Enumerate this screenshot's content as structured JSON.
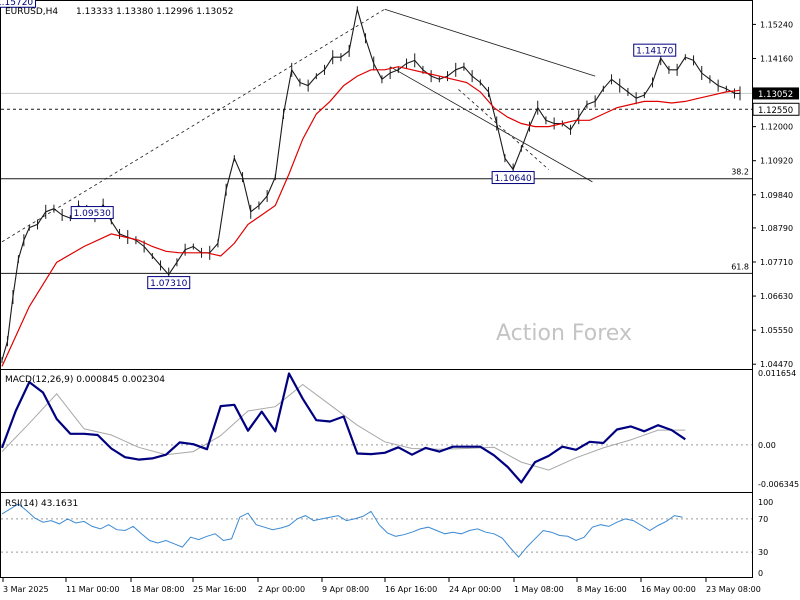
{
  "header": {
    "symbol_timeframe": "EURUSD,H4",
    "ohlc": "1.13333 1.13380 1.12996 1.13052"
  },
  "watermark": "Action Forex",
  "colors": {
    "price": "#1a1a1a",
    "ma": "#e00000",
    "macd": "#000080",
    "signal": "#a8a8a8",
    "rsi": "#3c8ad2",
    "label_border": "#000080",
    "current_price_bg": "#000000"
  },
  "chart_data": [
    {
      "type": "line",
      "title": "EURUSD,H4",
      "ylim": [
        1.0435,
        1.1595
      ],
      "yticks": [
        "1.15240",
        "1.14160",
        "1.13080",
        "1.12000",
        "1.10920",
        "1.09840",
        "1.08790",
        "1.07710",
        "1.06630",
        "1.05550",
        "1.04470"
      ],
      "xticks": [
        "3 Mar 2025",
        "11 Mar 00:00",
        "18 Mar 08:00",
        "25 Mar 16:00",
        "2 Apr 00:00",
        "9 Apr 08:00",
        "16 Apr 16:00",
        "24 Apr 00:00",
        "1 May 08:00",
        "8 May 16:00",
        "16 May 00:00",
        "23 May 08:00"
      ],
      "series": [
        {
          "x": [
            0,
            2,
            4,
            6,
            8,
            10,
            13,
            16,
            19,
            22,
            25,
            28,
            31,
            34,
            37,
            40,
            43,
            46,
            49,
            52,
            55,
            58,
            61,
            64,
            67,
            70,
            73,
            76,
            79,
            82,
            85,
            88,
            91,
            94,
            97,
            100,
            103,
            106,
            109,
            112,
            115,
            118,
            121,
            124,
            127,
            130,
            133,
            136,
            139,
            142,
            145,
            148,
            151,
            154,
            157,
            160,
            163,
            166,
            169,
            172,
            175,
            178,
            181,
            184,
            187,
            190,
            193,
            196,
            199,
            202,
            205,
            208,
            211,
            214,
            217,
            220,
            223,
            226,
            229,
            232,
            235,
            238,
            241,
            244,
            247,
            250,
            253,
            256,
            259,
            262,
            265,
            268,
            270
          ],
          "values": [
            1.046,
            1.052,
            1.066,
            1.078,
            1.084,
            1.088,
            1.089,
            1.093,
            1.094,
            1.092,
            1.091,
            1.095,
            1.093,
            1.091,
            1.0953,
            1.09,
            1.086,
            1.085,
            1.084,
            1.082,
            1.079,
            1.076,
            1.0731,
            1.077,
            1.081,
            1.082,
            1.08,
            1.08,
            1.083,
            1.1,
            1.11,
            1.104,
            1.093,
            1.095,
            1.098,
            1.104,
            1.124,
            1.138,
            1.134,
            1.133,
            1.136,
            1.138,
            1.142,
            1.142,
            1.144,
            1.1572,
            1.148,
            1.14,
            1.135,
            1.137,
            1.138,
            1.14,
            1.141,
            1.138,
            1.136,
            1.135,
            1.136,
            1.138,
            1.139,
            1.136,
            1.134,
            1.131,
            1.121,
            1.11,
            1.1064,
            1.113,
            1.12,
            1.126,
            1.122,
            1.121,
            1.121,
            1.119,
            1.123,
            1.127,
            1.128,
            1.132,
            1.135,
            1.133,
            1.131,
            1.129,
            1.13,
            1.134,
            1.1417,
            1.138,
            1.138,
            1.142,
            1.141,
            1.137,
            1.135,
            1.133,
            1.132,
            1.13052,
            1.13052
          ]
        },
        {
          "name": "MA",
          "x": [
            0,
            10,
            20,
            30,
            40,
            50,
            55,
            60,
            65,
            70,
            75,
            80,
            85,
            90,
            95,
            100,
            105,
            110,
            115,
            120,
            125,
            130,
            135,
            140,
            145,
            150,
            155,
            160,
            165,
            170,
            175,
            180,
            185,
            190,
            195,
            200,
            205,
            210,
            215,
            220,
            225,
            230,
            235,
            240,
            245,
            250,
            255,
            260,
            265,
            270
          ],
          "values": [
            1.044,
            1.063,
            1.077,
            1.082,
            1.086,
            1.084,
            1.082,
            1.0805,
            1.08,
            1.08,
            1.08,
            1.079,
            1.083,
            1.089,
            1.092,
            1.095,
            1.105,
            1.116,
            1.124,
            1.128,
            1.133,
            1.136,
            1.138,
            1.138,
            1.139,
            1.138,
            1.137,
            1.136,
            1.135,
            1.134,
            1.131,
            1.126,
            1.123,
            1.121,
            1.12,
            1.12,
            1.121,
            1.122,
            1.122,
            1.124,
            1.126,
            1.127,
            1.128,
            1.128,
            1.1275,
            1.128,
            1.129,
            1.13,
            1.131,
            1.1315
          ]
        }
      ],
      "horizontal_levels": [
        {
          "value": 1.13052,
          "style": "solid",
          "color": "#c8c8c8"
        },
        {
          "value": 1.1255,
          "style": "dashed",
          "color": "#1a1a1a"
        },
        {
          "value": 1.1035,
          "style": "solid",
          "color": "#1a1a1a",
          "label": "38.2"
        },
        {
          "value": 1.0735,
          "style": "solid",
          "color": "#1a1a1a",
          "label": "61.8"
        }
      ],
      "price_labels": [
        {
          "x": 13,
          "value": 1.1572,
          "label": "1.15720"
        },
        {
          "x": 33,
          "value": 1.0953,
          "label": "1.09530"
        },
        {
          "x": 61,
          "value": 1.0731,
          "label": "1.07310"
        },
        {
          "x": 187,
          "value": 1.1064,
          "label": "1.10640"
        },
        {
          "x": 241,
          "value": 1.1417,
          "label": "1.14170"
        }
      ],
      "axis_tags": [
        {
          "value": 1.13052,
          "label": "1.13052",
          "style": "filled"
        },
        {
          "value": 1.1255,
          "label": "1.12550",
          "style": "outlined"
        }
      ],
      "trendlines": [
        {
          "x1": 0,
          "y1": 1.0835,
          "x2": 140,
          "y2": 1.1572,
          "style": "dashed"
        },
        {
          "x1": 140,
          "y1": 1.1572,
          "x2": 217,
          "y2": 1.136,
          "style": "solid"
        },
        {
          "x1": 142,
          "y1": 1.139,
          "x2": 216,
          "y2": 1.1025,
          "style": "solid"
        },
        {
          "x1": 167,
          "y1": 1.1318,
          "x2": 200,
          "y2": 1.1064,
          "style": "dashed"
        }
      ]
    },
    {
      "type": "line",
      "title": "MACD(12,26,9) 0.000845 0.002304",
      "ylim": [
        -0.0075,
        0.012
      ],
      "yticks": [
        "0.011654",
        "0.00",
        "-0.006345"
      ],
      "series": [
        {
          "name": "MACD",
          "x": [
            0,
            5,
            10,
            15,
            20,
            25,
            30,
            35,
            40,
            45,
            50,
            55,
            60,
            65,
            70,
            75,
            80,
            85,
            90,
            95,
            100,
            105,
            110,
            115,
            120,
            125,
            130,
            135,
            140,
            145,
            150,
            155,
            160,
            165,
            170,
            175,
            180,
            185,
            190,
            195,
            200,
            205,
            210,
            215,
            220,
            225,
            230,
            235,
            240,
            245,
            250
          ],
          "values": [
            -0.0005,
            0.0055,
            0.0102,
            0.0085,
            0.0042,
            0.0018,
            0.0018,
            0.0016,
            -0.0006,
            -0.002,
            -0.0024,
            -0.0022,
            -0.0016,
            0.0004,
            0.0001,
            -0.0007,
            0.0063,
            0.0065,
            0.0023,
            0.0054,
            0.0022,
            0.0116,
            0.0075,
            0.004,
            0.0038,
            0.0046,
            -0.0014,
            -0.0015,
            -0.0013,
            -0.0004,
            -0.0016,
            -0.0005,
            -0.0011,
            -0.0003,
            -0.0003,
            -0.0003,
            -0.0017,
            -0.0036,
            -0.0061,
            -0.0028,
            -0.0018,
            -0.0003,
            -0.0008,
            0.0005,
            0.0003,
            0.0025,
            0.003,
            0.0022,
            0.0032,
            0.0024,
            0.0009
          ]
        },
        {
          "name": "Signal",
          "x": [
            0,
            10,
            20,
            30,
            40,
            50,
            60,
            70,
            80,
            90,
            100,
            110,
            120,
            130,
            140,
            150,
            160,
            170,
            180,
            190,
            200,
            210,
            220,
            230,
            240,
            250
          ],
          "values": [
            -0.0011,
            0.0035,
            0.0083,
            0.0026,
            0.0016,
            -0.0004,
            -0.0016,
            -0.0011,
            0.0015,
            0.0055,
            0.0062,
            0.0098,
            0.0065,
            0.0032,
            0.0005,
            -0.0006,
            -0.0007,
            -0.0006,
            -0.0004,
            -0.0028,
            -0.0041,
            -0.0021,
            -0.0005,
            0.0008,
            0.0024,
            0.0024
          ]
        }
      ]
    },
    {
      "type": "line",
      "title": "RSI(14) 43.1631",
      "ylim": [
        0,
        100
      ],
      "yticks": [
        "100",
        "70",
        "30",
        "0"
      ],
      "levels": [
        70,
        30
      ],
      "series": [
        {
          "name": "RSI",
          "x": [
            0,
            3,
            6,
            9,
            12,
            15,
            18,
            21,
            24,
            27,
            30,
            33,
            36,
            39,
            42,
            45,
            48,
            51,
            54,
            57,
            60,
            63,
            66,
            69,
            72,
            75,
            78,
            81,
            84,
            87,
            90,
            93,
            96,
            99,
            102,
            105,
            108,
            111,
            114,
            117,
            120,
            123,
            126,
            129,
            132,
            135,
            138,
            141,
            144,
            147,
            150,
            153,
            156,
            159,
            162,
            165,
            168,
            171,
            174,
            177,
            180,
            183,
            186,
            189,
            192,
            195,
            198,
            201,
            204,
            207,
            210,
            213,
            216,
            219,
            222,
            225,
            228,
            231,
            234,
            237,
            240,
            243,
            246,
            249
          ],
          "values": [
            76,
            82,
            88,
            80,
            71,
            66,
            68,
            64,
            70,
            65,
            67,
            61,
            58,
            63,
            57,
            56,
            61,
            52,
            44,
            41,
            44,
            40,
            36,
            48,
            45,
            49,
            52,
            44,
            46,
            72,
            77,
            63,
            60,
            57,
            59,
            62,
            70,
            74,
            68,
            70,
            72,
            74,
            68,
            70,
            73,
            79,
            63,
            53,
            49,
            51,
            54,
            58,
            60,
            56,
            52,
            54,
            52,
            56,
            58,
            54,
            52,
            47,
            35,
            24,
            36,
            46,
            56,
            54,
            50,
            49,
            44,
            48,
            60,
            63,
            61,
            66,
            70,
            68,
            62,
            56,
            62,
            67,
            74,
            72
          ]
        }
      ]
    }
  ]
}
